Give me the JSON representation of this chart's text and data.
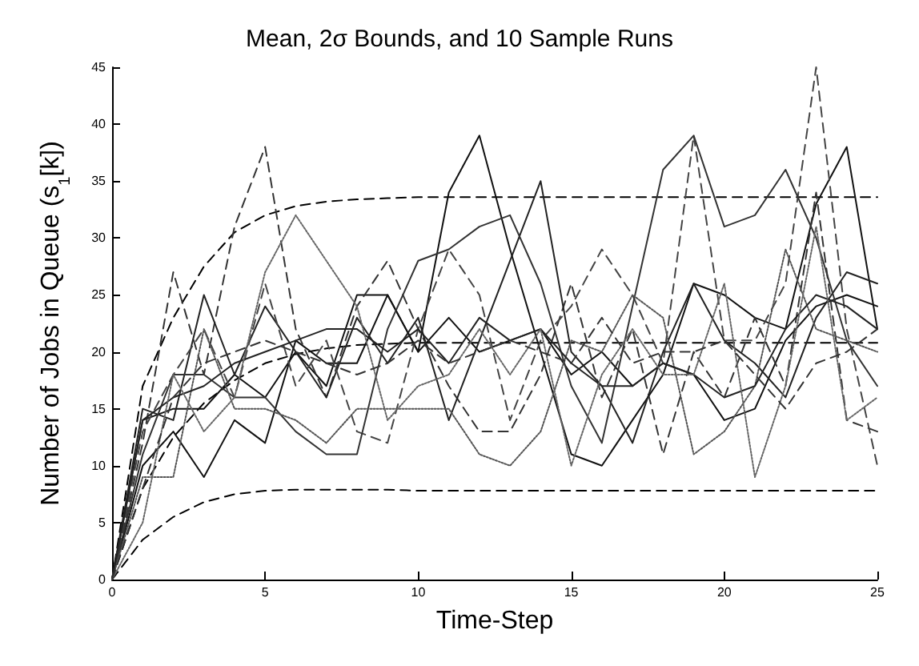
{
  "chart_data": {
    "type": "line",
    "title": "Mean, 2σ Bounds, and 10 Sample Runs",
    "xlabel": "Time-Step",
    "ylabel": "Number of Jobs in Queue (s$_{1}$[k])",
    "x": [
      0,
      1,
      2,
      3,
      4,
      5,
      6,
      7,
      8,
      9,
      10,
      11,
      12,
      13,
      14,
      15,
      16,
      17,
      18,
      19,
      20,
      21,
      22,
      23,
      24,
      25
    ],
    "xlim": [
      0,
      25
    ],
    "xticks": [
      0,
      5,
      10,
      15,
      20,
      25
    ],
    "ylim": [
      0,
      45
    ],
    "yticks": [
      0,
      5,
      10,
      15,
      20,
      25,
      30,
      35,
      40,
      45
    ],
    "grid": false,
    "marker": "none",
    "series": [
      {
        "color": "#000000",
        "line_style": "dashed",
        "values": [
          0,
          8,
          12.5,
          15.5,
          17.5,
          19,
          19.8,
          20.3,
          20.6,
          20.7,
          20.8,
          20.8,
          20.8,
          20.8,
          20.8,
          20.8,
          20.8,
          20.8,
          20.8,
          20.8,
          20.8,
          20.8,
          20.8,
          20.8,
          20.8,
          20.8
        ]
      },
      {
        "color": "#000000",
        "line_style": "dashed",
        "values": [
          0,
          17,
          23,
          27.5,
          30.5,
          32,
          32.8,
          33.2,
          33.4,
          33.5,
          33.6,
          33.6,
          33.6,
          33.6,
          33.6,
          33.6,
          33.6,
          33.6,
          33.6,
          33.6,
          33.6,
          33.6,
          33.6,
          33.6,
          33.6,
          33.6
        ]
      },
      {
        "color": "#000000",
        "line_style": "dashed",
        "values": [
          0,
          3.5,
          5.5,
          6.8,
          7.5,
          7.8,
          7.9,
          7.9,
          7.9,
          7.9,
          7.8,
          7.8,
          7.8,
          7.8,
          7.8,
          7.8,
          7.8,
          7.8,
          7.8,
          7.8,
          7.8,
          7.8,
          7.8,
          7.8,
          7.8,
          7.8
        ]
      },
      {
        "color": "#111111",
        "line_style": "solid",
        "values": [
          0,
          14,
          15,
          15,
          18,
          16,
          20,
          17,
          25,
          25,
          20,
          34,
          39,
          29,
          20,
          11,
          10,
          14,
          18,
          26,
          25,
          23,
          22,
          33,
          38,
          22
        ]
      },
      {
        "color": "#111111",
        "line_style": "solid",
        "values": [
          0,
          10,
          13,
          9,
          14,
          12,
          21,
          19,
          19,
          25,
          20,
          23,
          20,
          21,
          22,
          18,
          20,
          17,
          19,
          18,
          14,
          15,
          21,
          24,
          25,
          24
        ]
      },
      {
        "color": "#333333",
        "line_style": "dashed",
        "values": [
          0,
          12,
          27,
          18,
          31,
          38,
          22,
          16,
          24,
          28,
          22,
          17,
          13,
          13,
          18,
          26,
          16,
          22,
          11,
          20,
          16,
          23,
          17,
          34,
          14,
          13
        ]
      },
      {
        "color": "#222222",
        "line_style": "solid",
        "values": [
          0,
          15,
          14,
          25,
          18,
          24,
          20,
          16,
          23,
          19,
          23,
          14,
          21,
          28,
          35,
          20,
          17,
          12,
          20,
          26,
          21,
          19,
          16,
          23,
          27,
          26
        ]
      },
      {
        "color": "#444444",
        "line_style": "dashed",
        "values": [
          0,
          13,
          18,
          22,
          16,
          26,
          17,
          21,
          13,
          12,
          22,
          29,
          25,
          14,
          21,
          24,
          29,
          25,
          19,
          39,
          21,
          21,
          26,
          45,
          22,
          10
        ]
      },
      {
        "color": "#333333",
        "line_style": "solid",
        "values": [
          0,
          11,
          18,
          18,
          16,
          16,
          13,
          11,
          11,
          22,
          28,
          29,
          31,
          32,
          26,
          17,
          12,
          24,
          36,
          39,
          31,
          32,
          36,
          30,
          21,
          17
        ]
      },
      {
        "color": "#555555",
        "line_style": "dotted",
        "values": [
          0,
          9,
          9,
          22,
          15,
          15,
          14,
          12,
          15,
          15,
          15,
          15,
          11,
          10,
          13,
          21,
          20,
          25,
          23,
          11,
          13,
          17,
          29,
          22,
          21,
          20
        ]
      },
      {
        "color": "#222222",
        "line_style": "solid",
        "values": [
          0,
          14,
          16,
          17,
          19,
          20,
          21,
          22,
          22,
          20,
          22,
          19,
          23,
          21,
          22,
          19,
          17,
          17,
          19,
          18,
          16,
          17,
          22,
          25,
          24,
          22
        ]
      },
      {
        "color": "#666666",
        "line_style": "dotted",
        "values": [
          0,
          5,
          18,
          13,
          16,
          27,
          32,
          28,
          24,
          14,
          17,
          18,
          22,
          18,
          22,
          10,
          18,
          22,
          18,
          18,
          26,
          9,
          17,
          31,
          14,
          16
        ]
      },
      {
        "color": "#333333",
        "line_style": "dashed",
        "values": [
          0,
          8,
          16,
          19,
          20,
          21,
          20,
          19,
          18,
          19,
          21,
          19,
          20,
          21,
          20,
          19,
          23,
          19,
          20,
          20,
          21,
          18,
          15,
          19,
          20,
          22
        ]
      }
    ]
  }
}
